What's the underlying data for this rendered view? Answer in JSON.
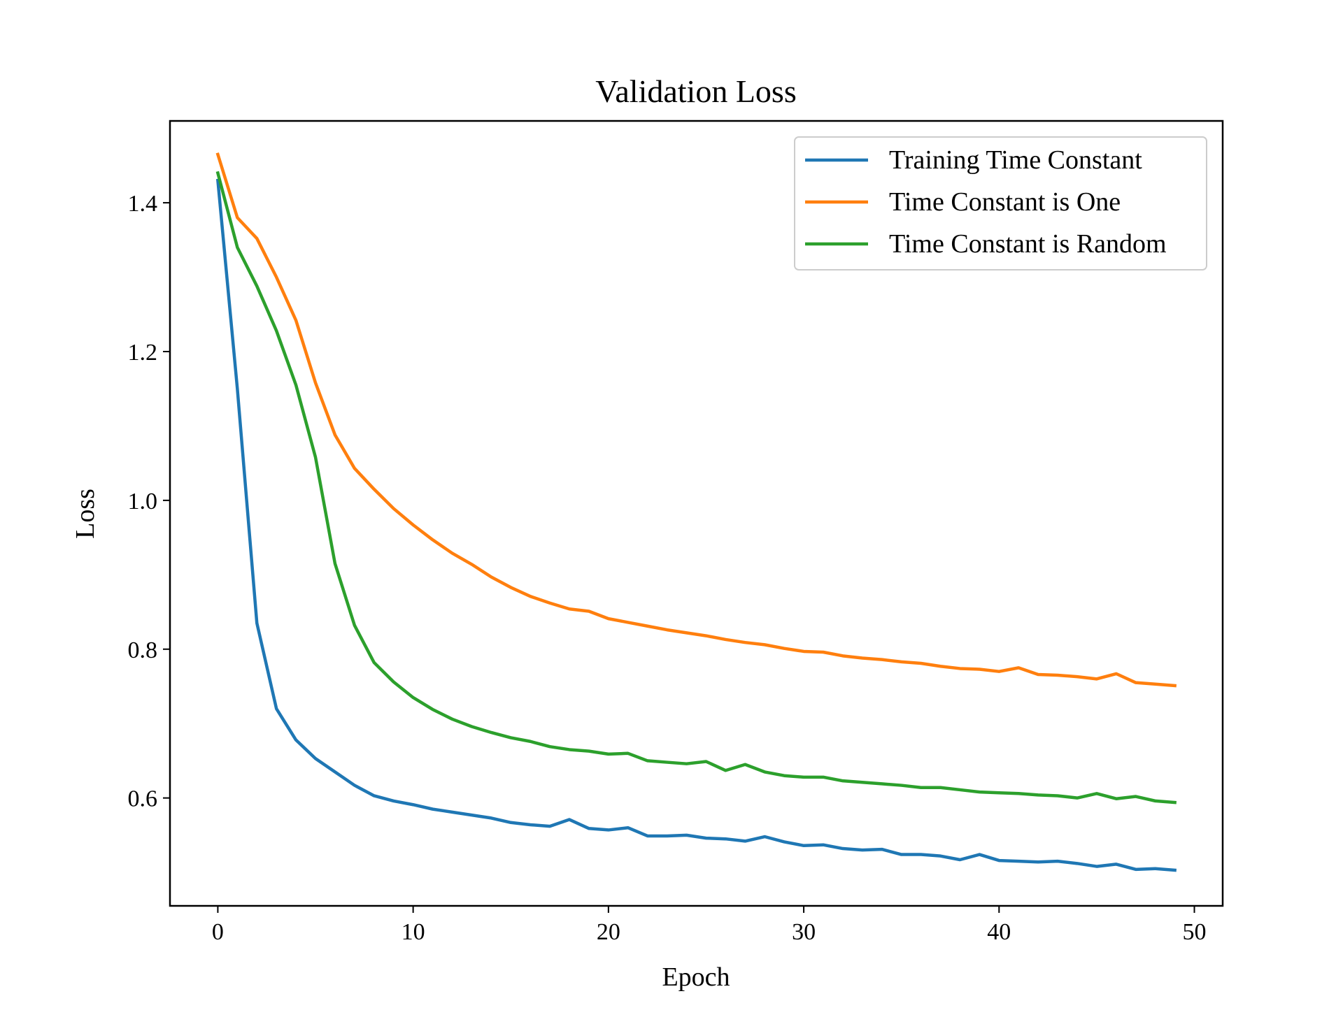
{
  "chart_data": {
    "type": "line",
    "title": "Validation Loss",
    "xlabel": "Epoch",
    "ylabel": "Loss",
    "xlim": [
      -2.45,
      51.45
    ],
    "ylim": [
      0.455,
      1.51
    ],
    "xticks": [
      0,
      10,
      20,
      30,
      40,
      50
    ],
    "yticks": [
      0.6,
      0.8,
      1.0,
      1.2,
      1.4
    ],
    "xtick_labels": [
      "0",
      "10",
      "20",
      "30",
      "40",
      "50"
    ],
    "ytick_labels": [
      "0.6",
      "0.8",
      "1.0",
      "1.2",
      "1.4"
    ],
    "grid": false,
    "legend_position": "top-right",
    "x": [
      0,
      1,
      2,
      3,
      4,
      5,
      6,
      7,
      8,
      9,
      10,
      11,
      12,
      13,
      14,
      15,
      16,
      17,
      18,
      19,
      20,
      21,
      22,
      23,
      24,
      25,
      26,
      27,
      28,
      29,
      30,
      31,
      32,
      33,
      34,
      35,
      36,
      37,
      38,
      39,
      40,
      41,
      42,
      43,
      44,
      45,
      46,
      47,
      48,
      49
    ],
    "series": [
      {
        "name": "Training Time Constant",
        "color": "#1f77b4",
        "values": [
          1.43,
          1.15,
          0.835,
          0.72,
          0.678,
          0.653,
          0.635,
          0.617,
          0.603,
          0.596,
          0.591,
          0.585,
          0.581,
          0.577,
          0.573,
          0.567,
          0.564,
          0.562,
          0.571,
          0.559,
          0.557,
          0.56,
          0.549,
          0.549,
          0.55,
          0.546,
          0.545,
          0.542,
          0.548,
          0.541,
          0.536,
          0.537,
          0.532,
          0.53,
          0.531,
          0.524,
          0.524,
          0.522,
          0.517,
          0.524,
          0.516,
          0.515,
          0.514,
          0.515,
          0.512,
          0.508,
          0.511,
          0.504,
          0.505,
          0.503
        ]
      },
      {
        "name": "Time Constant is One",
        "color": "#ff7f0e",
        "values": [
          1.465,
          1.38,
          1.352,
          1.3,
          1.242,
          1.158,
          1.088,
          1.043,
          1.015,
          0.989,
          0.967,
          0.947,
          0.929,
          0.914,
          0.897,
          0.883,
          0.871,
          0.862,
          0.854,
          0.851,
          0.841,
          0.836,
          0.831,
          0.826,
          0.822,
          0.818,
          0.813,
          0.809,
          0.806,
          0.801,
          0.797,
          0.796,
          0.791,
          0.788,
          0.786,
          0.783,
          0.781,
          0.777,
          0.774,
          0.773,
          0.77,
          0.775,
          0.766,
          0.765,
          0.763,
          0.76,
          0.767,
          0.755,
          0.753,
          0.751
        ]
      },
      {
        "name": "Time Constant is Random",
        "color": "#2ca02c",
        "values": [
          1.44,
          1.34,
          1.288,
          1.228,
          1.155,
          1.058,
          0.915,
          0.832,
          0.782,
          0.756,
          0.735,
          0.719,
          0.706,
          0.696,
          0.688,
          0.681,
          0.676,
          0.669,
          0.665,
          0.663,
          0.659,
          0.66,
          0.65,
          0.648,
          0.646,
          0.649,
          0.637,
          0.645,
          0.635,
          0.63,
          0.628,
          0.628,
          0.623,
          0.621,
          0.619,
          0.617,
          0.614,
          0.614,
          0.611,
          0.608,
          0.607,
          0.606,
          0.604,
          0.603,
          0.6,
          0.606,
          0.599,
          0.602,
          0.596,
          0.594
        ]
      }
    ]
  }
}
